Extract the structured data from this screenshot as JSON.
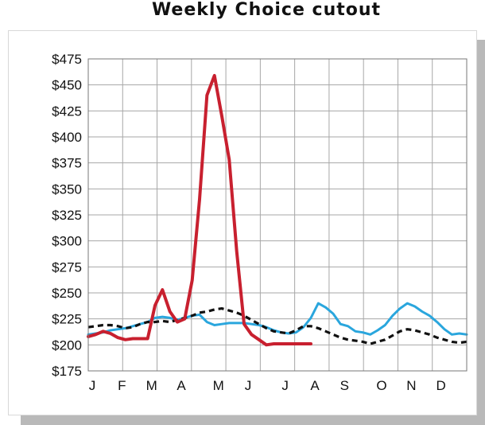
{
  "chart_data": {
    "type": "line",
    "title": "Weekly Choice cutout",
    "xlabel": "",
    "ylabel": "",
    "ylim": [
      175,
      475
    ],
    "y_ticks": [
      175,
      200,
      225,
      250,
      275,
      300,
      325,
      350,
      375,
      400,
      425,
      450,
      475
    ],
    "y_tick_labels": [
      "$175",
      "$200",
      "$225",
      "$250",
      "$275",
      "$300",
      "$325",
      "$350",
      "$375",
      "$400",
      "$425",
      "$450",
      "$475"
    ],
    "x_unit": "week",
    "xlim": [
      1,
      52
    ],
    "x_tick_labels": [
      "J",
      "F",
      "M",
      "A",
      "M",
      "J",
      "J",
      "A",
      "S",
      "O",
      "N",
      "D"
    ],
    "x_tick_weeks": [
      1,
      5,
      9,
      13,
      18,
      22,
      27,
      31,
      35,
      40,
      44,
      48
    ],
    "grid": true,
    "legend": "none",
    "series": [
      {
        "color": "#c8202f",
        "style": "solid",
        "x": [
          1,
          2,
          3,
          4,
          5,
          6,
          7,
          8,
          9,
          10,
          11,
          12,
          13,
          14,
          15,
          16,
          17,
          18,
          19,
          20,
          21,
          22,
          23,
          24,
          25,
          26,
          27,
          28,
          29,
          30,
          31
        ],
        "y": [
          208,
          210,
          213,
          211,
          207,
          205,
          206,
          206,
          206,
          238,
          253,
          232,
          222,
          225,
          262,
          340,
          440,
          459,
          420,
          378,
          290,
          220,
          210,
          205,
          200,
          201,
          201,
          201,
          201,
          201,
          201
        ]
      },
      {
        "color": "#2aa6dd",
        "style": "solid",
        "x": [
          1,
          2,
          3,
          4,
          5,
          6,
          7,
          8,
          9,
          10,
          11,
          12,
          13,
          14,
          15,
          16,
          17,
          18,
          19,
          20,
          21,
          22,
          23,
          24,
          25,
          26,
          27,
          28,
          29,
          30,
          31,
          32,
          33,
          34,
          35,
          36,
          37,
          38,
          39,
          40,
          41,
          42,
          43,
          44,
          45,
          46,
          47,
          48,
          49,
          50,
          51,
          52
        ],
        "y": [
          210,
          211,
          212,
          214,
          215,
          216,
          218,
          220,
          222,
          226,
          227,
          226,
          224,
          226,
          228,
          229,
          222,
          219,
          220,
          221,
          221,
          221,
          220,
          219,
          217,
          214,
          212,
          211,
          212,
          217,
          226,
          240,
          236,
          230,
          220,
          218,
          213,
          212,
          210,
          214,
          219,
          228,
          235,
          240,
          237,
          232,
          228,
          222,
          215,
          210,
          211,
          210
        ]
      },
      {
        "color": "#111111",
        "style": "dashed",
        "x": [
          1,
          2,
          3,
          4,
          5,
          6,
          7,
          8,
          9,
          10,
          11,
          12,
          13,
          14,
          15,
          16,
          17,
          18,
          19,
          20,
          21,
          22,
          23,
          24,
          25,
          26,
          27,
          28,
          29,
          30,
          31,
          32,
          33,
          34,
          35,
          36,
          37,
          38,
          39,
          40,
          41,
          42,
          43,
          44,
          45,
          46,
          47,
          48,
          49,
          50,
          51,
          52
        ],
        "y": [
          217,
          218,
          219,
          219,
          218,
          216,
          217,
          220,
          222,
          222,
          223,
          222,
          224,
          226,
          228,
          231,
          232,
          234,
          235,
          233,
          231,
          228,
          224,
          220,
          216,
          213,
          212,
          211,
          214,
          218,
          218,
          216,
          213,
          210,
          207,
          205,
          204,
          203,
          201,
          203,
          205,
          209,
          213,
          215,
          214,
          212,
          210,
          207,
          205,
          203,
          202,
          203
        ]
      }
    ]
  }
}
